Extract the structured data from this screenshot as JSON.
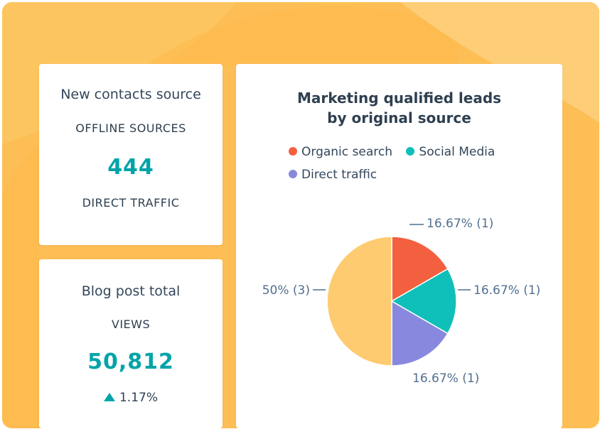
{
  "colors": {
    "background": "#fdbf55",
    "accent": "#00a4a8",
    "organic": "#f3603f",
    "social": "#0fbfb9",
    "direct": "#8889de",
    "other": "#fecb70"
  },
  "contacts_card": {
    "title": "New contacts source",
    "label_top": "OFFLINE SOURCES",
    "value": "444",
    "label_bottom": "DIRECT TRAFFIC"
  },
  "blog_card": {
    "title": "Blog post total",
    "label": "VIEWS",
    "value": "50,812",
    "change": "1.17%",
    "change_icon": "triangle-up-icon"
  },
  "chart_data": {
    "type": "pie",
    "title": "Marketing qualified leads by original source",
    "legend": [
      "Organic search",
      "Social Media",
      "Direct traffic"
    ],
    "legend_placement": "top",
    "slices": [
      {
        "name": "Organic search",
        "value": 1,
        "percent": 16.67,
        "label": "16.67% (1)",
        "color": "#f3603f"
      },
      {
        "name": "Social Media",
        "value": 1,
        "percent": 16.67,
        "label": "16.67% (1)",
        "color": "#0fbfb9"
      },
      {
        "name": "Direct traffic",
        "value": 1,
        "percent": 16.67,
        "label": "16.67% (1)",
        "color": "#8889de"
      },
      {
        "value": 3,
        "percent": 50,
        "label": "50% (3)",
        "color": "#fecb70"
      }
    ]
  }
}
